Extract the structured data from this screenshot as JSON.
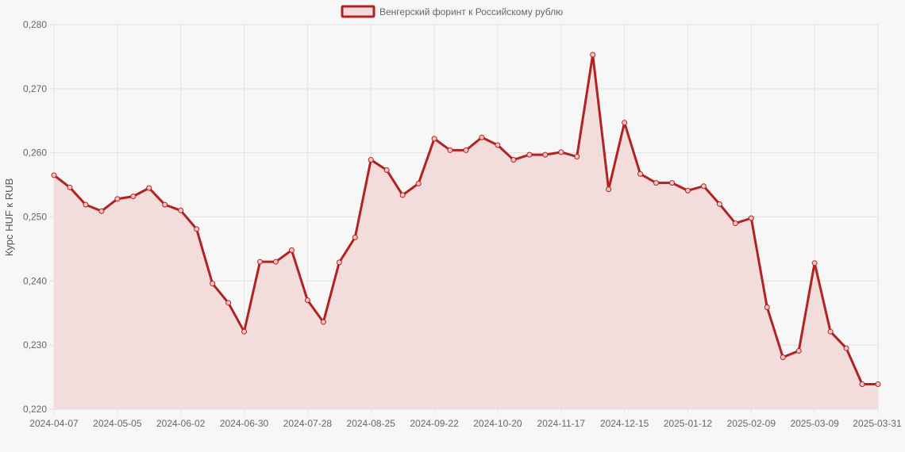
{
  "chart_data": {
    "type": "line",
    "legend": {
      "label": "Венгерский форинт к Российскому рублю",
      "placement": "top-center"
    },
    "ylabel": "Курс HUF к RUB",
    "xlabel": "",
    "ylim": [
      0.22,
      0.28
    ],
    "y_ticks": [
      "0,220",
      "0,230",
      "0,240",
      "0,250",
      "0,260",
      "0,270",
      "0,280"
    ],
    "x_tick_labels": [
      "2024-04-07",
      "2024-05-05",
      "2024-06-02",
      "2024-06-30",
      "2024-07-28",
      "2024-08-25",
      "2024-09-22",
      "2024-10-20",
      "2024-11-17",
      "2024-12-15",
      "2025-01-12",
      "2025-02-09",
      "2025-03-09",
      "2025-03-31"
    ],
    "grid": true,
    "colors": {
      "line": "#b22222",
      "fill": "#f2dcdc",
      "grid": "#e2e2e2"
    },
    "series": [
      {
        "name": "Венгерский форинт к Российскому рублю",
        "values": [
          0.2565,
          0.2546,
          0.2519,
          0.2509,
          0.2528,
          0.2532,
          0.2545,
          0.2519,
          0.251,
          0.2481,
          0.2396,
          0.2366,
          0.2321,
          0.243,
          0.243,
          0.2448,
          0.237,
          0.2336,
          0.2429,
          0.2468,
          0.2589,
          0.2573,
          0.2534,
          0.2552,
          0.2622,
          0.2604,
          0.2604,
          0.2624,
          0.2612,
          0.2589,
          0.2597,
          0.2597,
          0.2601,
          0.2594,
          0.2753,
          0.2543,
          0.2647,
          0.2567,
          0.2553,
          0.2553,
          0.2541,
          0.2548,
          0.252,
          0.249,
          0.2498,
          0.2359,
          0.2281,
          0.2291,
          0.2428,
          0.2321,
          0.2295,
          0.2239,
          0.2239
        ]
      }
    ]
  }
}
